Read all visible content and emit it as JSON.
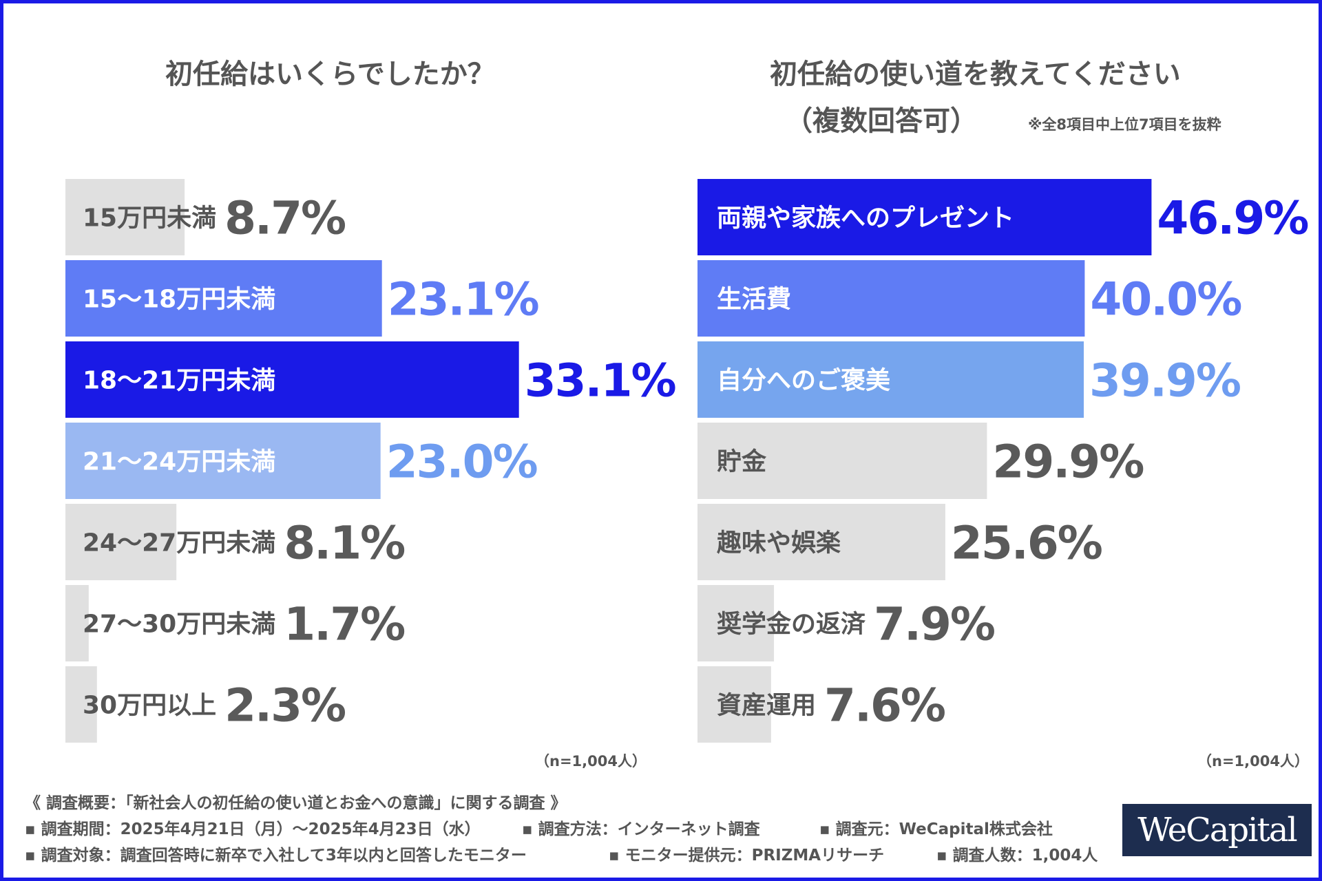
{
  "footer": {
    "heading": "《 調査概要：「新社会人の初任給の使い道とお金への意識」に関する調査 》",
    "period": "▪ 調査期間：2025年4月21日（月）～2025年4月23日（水）",
    "method": "▪ 調査方法：インターネット調査",
    "source": "▪ 調査元：WeCapital株式会社",
    "target": "▪ 調査対象：調査回答時に新卒で入社して3年以内と回答したモニター",
    "provider": "▪ モニター提供元：PRIZMAリサーチ",
    "count": "▪ 調査人数：1,004人"
  },
  "logo": {
    "text": "WeCapital"
  },
  "chart_data": [
    {
      "type": "bar",
      "orientation": "horizontal",
      "title": "初任給はいくらでしたか？",
      "n_label": "（n=1,004人）",
      "categories": [
        "15万円未満",
        "15～18万円未満",
        "18～21万円未満",
        "21～24万円未満",
        "24～27万円未満",
        "27～30万円未満",
        "30万円以上"
      ],
      "values": [
        8.7,
        23.1,
        33.1,
        23.0,
        8.1,
        1.7,
        2.3
      ],
      "value_labels": [
        "8.7%",
        "23.1%",
        "33.1%",
        "23.0%",
        "8.1%",
        "1.7%",
        "2.3%"
      ],
      "colors": [
        "#e0e0e0",
        "#5f7cf5",
        "#1a1ae6",
        "#9ab8f2",
        "#e0e0e0",
        "#e0e0e0",
        "#e0e0e0"
      ],
      "value_colors": [
        "#5a5a5a",
        "#5f7cf5",
        "#1a1ae6",
        "#6e9cf0",
        "#5a5a5a",
        "#5a5a5a",
        "#5a5a5a"
      ],
      "label_colors": [
        "#555555",
        "#ffffff",
        "#ffffff",
        "#ffffff",
        "#555555",
        "#555555",
        "#555555"
      ]
    },
    {
      "type": "bar",
      "orientation": "horizontal",
      "title": "初任給の使い道を教えてください",
      "title_line2": "（複数回答可）",
      "note": "※全8項目中上位7項目を抜粋",
      "n_label": "（n=1,004人）",
      "categories": [
        "両親や家族へのプレゼント",
        "生活費",
        "自分へのご褒美",
        "貯金",
        "趣味や娯楽",
        "奨学金の返済",
        "資産運用"
      ],
      "values": [
        46.9,
        40.0,
        39.9,
        29.9,
        25.6,
        7.9,
        7.6
      ],
      "value_labels": [
        "46.9%",
        "40.0%",
        "39.9%",
        "29.9%",
        "25.6%",
        "7.9%",
        "7.6%"
      ],
      "colors": [
        "#1a1ae6",
        "#5f7cf5",
        "#76a5ee",
        "#e0e0e0",
        "#e0e0e0",
        "#e0e0e0",
        "#e0e0e0"
      ],
      "value_colors": [
        "#1a1ae6",
        "#5f7cf5",
        "#6e9cf0",
        "#5a5a5a",
        "#5a5a5a",
        "#5a5a5a",
        "#5a5a5a"
      ],
      "label_colors": [
        "#ffffff",
        "#ffffff",
        "#ffffff",
        "#555555",
        "#555555",
        "#555555",
        "#555555"
      ]
    }
  ]
}
